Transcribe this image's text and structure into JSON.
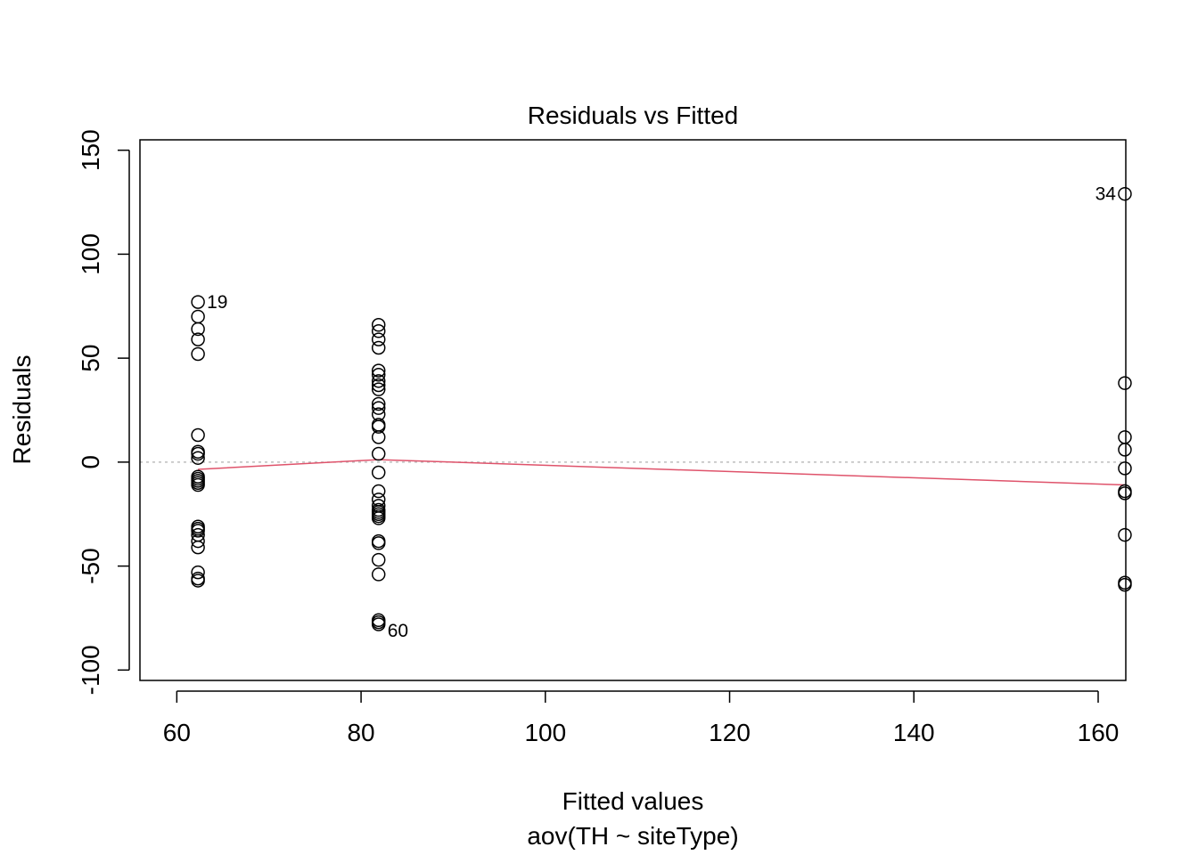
{
  "chart_data": {
    "type": "scatter",
    "title": "Residuals vs Fitted",
    "xlabel": "Fitted values",
    "subtitle": "aov(TH ~ siteType)",
    "ylabel": "Residuals",
    "xlim": [
      56,
      163
    ],
    "ylim": [
      -105,
      155
    ],
    "x_ticks": [
      "60",
      "80",
      "100",
      "120",
      "140",
      "160"
    ],
    "y_ticks": [
      "-100",
      "-50",
      "0",
      "50",
      "100",
      "150"
    ],
    "x_tick_values": [
      60,
      80,
      100,
      120,
      140,
      160
    ],
    "y_tick_values": [
      -100,
      -50,
      0,
      50,
      100,
      150
    ],
    "zero_line": 0,
    "smooth_color": "#DF536B",
    "smooth": [
      {
        "x": 62.3,
        "y": -3.5
      },
      {
        "x": 81.9,
        "y": 1.2
      },
      {
        "x": 162.9,
        "y": -11
      }
    ],
    "groups": [
      {
        "x": 62.3,
        "residuals": [
          77,
          70,
          64,
          59,
          52,
          13,
          5,
          4,
          2,
          -7,
          -8,
          -9,
          -10,
          -11,
          -31,
          -32,
          -33,
          -35,
          -38,
          -41,
          -53,
          -56,
          -57
        ]
      },
      {
        "x": 81.9,
        "residuals": [
          66,
          63,
          59,
          55,
          44,
          42,
          39,
          37,
          35,
          28,
          26,
          23,
          18,
          17,
          12,
          4,
          -5,
          -14,
          -18,
          -21,
          -23,
          -24,
          -25,
          -26,
          -27,
          -38,
          -39,
          -47,
          -54,
          -76,
          -77,
          -78
        ]
      },
      {
        "x": 162.9,
        "residuals": [
          129,
          38,
          12,
          6,
          -3,
          -14,
          -15,
          -35,
          -58,
          -59
        ]
      }
    ],
    "annotations": [
      {
        "label": "19",
        "x": 62.3,
        "y": 77,
        "side": "right"
      },
      {
        "label": "60",
        "x": 81.9,
        "y": -78,
        "side": "right"
      },
      {
        "label": "34",
        "x": 162.9,
        "y": 129,
        "side": "left"
      }
    ]
  }
}
